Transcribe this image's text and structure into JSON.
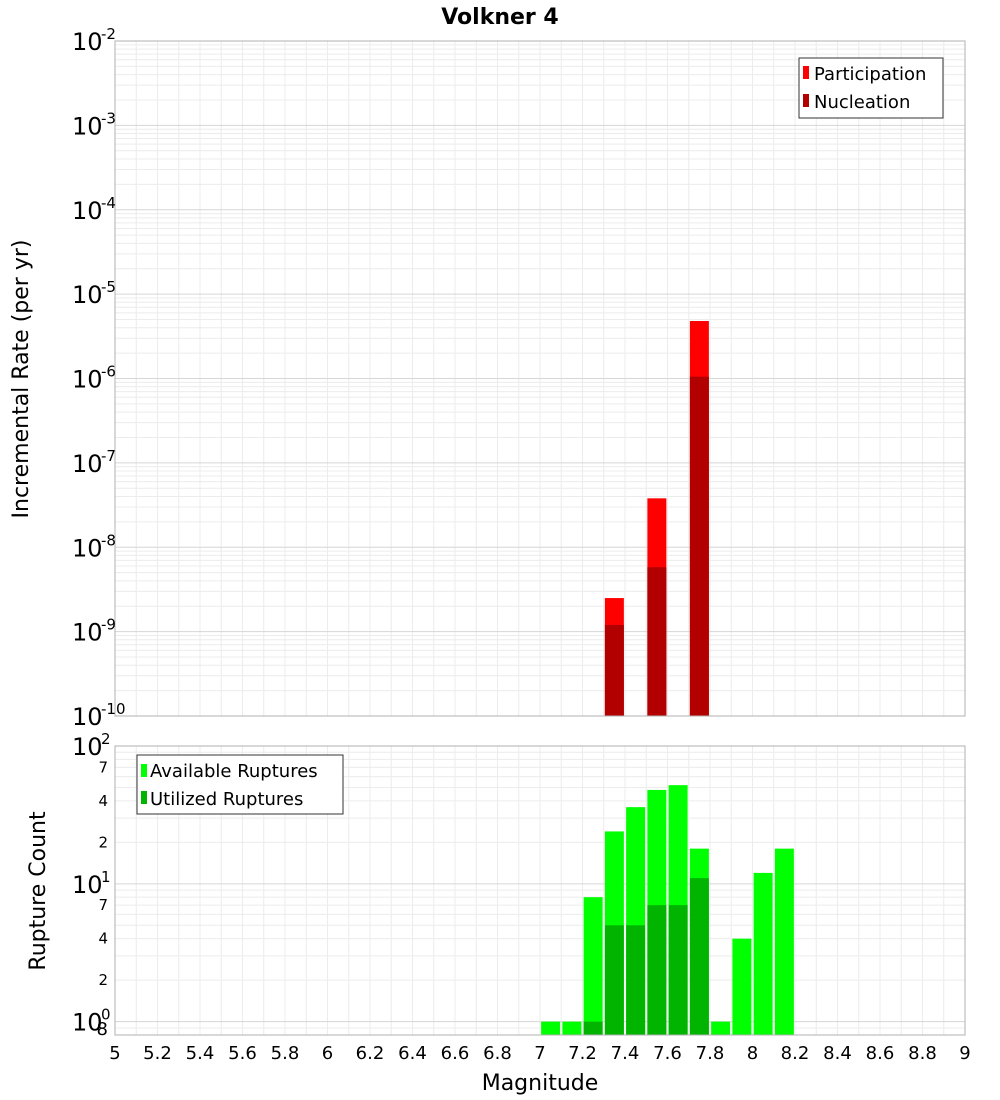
{
  "chart_data": [
    {
      "type": "bar",
      "title": "Volkner 4",
      "xlabel": "",
      "ylabel": "Incremental Rate (per yr)",
      "yscale": "log",
      "xlim": [
        5,
        9
      ],
      "ylim": [
        1e-10,
        0.01
      ],
      "y_ticks": [
        {
          "base": "10",
          "exp": "-2",
          "value": 0.01
        },
        {
          "base": "10",
          "exp": "-3",
          "value": 0.001
        },
        {
          "base": "10",
          "exp": "-4",
          "value": 0.0001
        },
        {
          "base": "10",
          "exp": "-5",
          "value": 1e-05
        },
        {
          "base": "10",
          "exp": "-6",
          "value": 1e-06
        },
        {
          "base": "10",
          "exp": "-7",
          "value": 1e-07
        },
        {
          "base": "10",
          "exp": "-8",
          "value": 1e-08
        },
        {
          "base": "10",
          "exp": "-9",
          "value": 1e-09
        },
        {
          "base": "10",
          "exp": "-10",
          "value": 1e-10
        }
      ],
      "grid": true,
      "legend_position": "top-right",
      "series": [
        {
          "name": "Participation",
          "color": "#ff0000",
          "x": [
            7.35,
            7.55,
            7.75
          ],
          "values": [
            2.5e-09,
            3.8e-08,
            4.8e-06
          ]
        },
        {
          "name": "Nucleation",
          "color": "#b20000",
          "x": [
            7.35,
            7.55,
            7.75
          ],
          "values": [
            1.2e-09,
            5.8e-09,
            1.05e-06
          ]
        }
      ]
    },
    {
      "type": "bar",
      "title": "",
      "xlabel": "Magnitude",
      "ylabel": "Rupture Count",
      "yscale": "log",
      "xlim": [
        5,
        9
      ],
      "ylim": [
        0.8,
        100
      ],
      "x_ticks": [
        "5",
        "5.2",
        "5.4",
        "5.6",
        "5.8",
        "6",
        "6.2",
        "6.4",
        "6.6",
        "6.8",
        "7",
        "7.2",
        "7.4",
        "7.6",
        "7.8",
        "8",
        "8.2",
        "8.4",
        "8.6",
        "8.8",
        "9"
      ],
      "y_major_ticks": [
        {
          "base": "10",
          "exp": "2",
          "value": 100
        },
        {
          "base": "10",
          "exp": "1",
          "value": 10
        },
        {
          "base": "10",
          "exp": "0",
          "value": 1
        }
      ],
      "y_minor_ticks": [
        {
          "label": "7",
          "value": 70
        },
        {
          "label": "4",
          "value": 40
        },
        {
          "label": "2",
          "value": 20
        },
        {
          "label": "7",
          "value": 7
        },
        {
          "label": "4",
          "value": 4
        },
        {
          "label": "2",
          "value": 2
        },
        {
          "label": "8",
          "value": 0.8
        }
      ],
      "grid": true,
      "legend_position": "top-left",
      "series": [
        {
          "name": "Available Ruptures",
          "color": "#00ff00",
          "x": [
            7.05,
            7.15,
            7.25,
            7.35,
            7.45,
            7.55,
            7.65,
            7.75,
            7.85,
            7.95,
            8.05,
            8.15
          ],
          "values": [
            1,
            1,
            8,
            24,
            36,
            48,
            52,
            18,
            1,
            4,
            12,
            18
          ]
        },
        {
          "name": "Utilized Ruptures",
          "color": "#00b400",
          "x": [
            7.25,
            7.35,
            7.45,
            7.55,
            7.65,
            7.75
          ],
          "values": [
            1,
            5,
            5,
            7,
            7,
            11
          ]
        }
      ]
    }
  ]
}
